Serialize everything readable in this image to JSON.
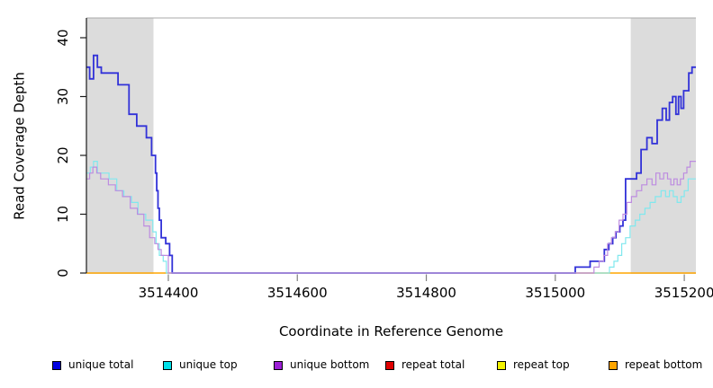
{
  "chart_data": {
    "type": "line",
    "subtype": "step",
    "title": "",
    "xlabel": "Coordinate in Reference Genome",
    "ylabel": "Read Coverage Depth",
    "x_ticks": [
      3514400,
      3514600,
      3514800,
      3515000,
      3515200
    ],
    "y_ticks": [
      0,
      10,
      20,
      30,
      40
    ],
    "xlim": [
      3514273,
      3515218
    ],
    "ylim": [
      0,
      43
    ],
    "grid": false,
    "legend_position": "bottom",
    "band_color": "#dcdcdc",
    "shaded_regions": [
      {
        "x0": 3514273,
        "x1": 3514377
      },
      {
        "x0": 3515117,
        "x1": 3515218
      }
    ],
    "series": [
      {
        "name": "repeat total",
        "line_color": "#dd0000",
        "width": 1,
        "points": [
          [
            3514273,
            0
          ]
        ]
      },
      {
        "name": "repeat top",
        "line_color": "#f5f500",
        "width": 1,
        "points": [
          [
            3514273,
            0
          ]
        ]
      },
      {
        "name": "repeat bottom",
        "line_color": "#ffa500",
        "width": 1.4,
        "points": [
          [
            3514273,
            0
          ]
        ]
      },
      {
        "name": "unique total",
        "line_color": "#3232d8",
        "width": 1.8,
        "points": [
          [
            3514273,
            35
          ],
          [
            3514278,
            33
          ],
          [
            3514284,
            37
          ],
          [
            3514290,
            35
          ],
          [
            3514296,
            34
          ],
          [
            3514322,
            32
          ],
          [
            3514339,
            27
          ],
          [
            3514351,
            25
          ],
          [
            3514366,
            23
          ],
          [
            3514374,
            20
          ],
          [
            3514380,
            17
          ],
          [
            3514382,
            14
          ],
          [
            3514384,
            11
          ],
          [
            3514386,
            9
          ],
          [
            3514389,
            6
          ],
          [
            3514396,
            5
          ],
          [
            3514402,
            3
          ],
          [
            3514406,
            0
          ],
          [
            3515031,
            1
          ],
          [
            3515054,
            2
          ],
          [
            3515076,
            4
          ],
          [
            3515083,
            5
          ],
          [
            3515089,
            6
          ],
          [
            3515094,
            7
          ],
          [
            3515100,
            8
          ],
          [
            3515105,
            9
          ],
          [
            3515109,
            16
          ],
          [
            3515126,
            17
          ],
          [
            3515133,
            21
          ],
          [
            3515142,
            23
          ],
          [
            3515150,
            22
          ],
          [
            3515158,
            26
          ],
          [
            3515166,
            28
          ],
          [
            3515172,
            26
          ],
          [
            3515177,
            29
          ],
          [
            3515182,
            30
          ],
          [
            3515187,
            27
          ],
          [
            3515191,
            30
          ],
          [
            3515195,
            28
          ],
          [
            3515199,
            31
          ],
          [
            3515207,
            34
          ],
          [
            3515212,
            35
          ]
        ]
      },
      {
        "name": "unique top",
        "line_color": "#80e8ee",
        "width": 1.2,
        "points": [
          [
            3514273,
            17
          ],
          [
            3514279,
            18
          ],
          [
            3514284,
            19
          ],
          [
            3514290,
            17
          ],
          [
            3514308,
            16
          ],
          [
            3514320,
            14
          ],
          [
            3514331,
            13
          ],
          [
            3514343,
            12
          ],
          [
            3514353,
            10
          ],
          [
            3514365,
            9
          ],
          [
            3514376,
            7
          ],
          [
            3514381,
            5
          ],
          [
            3514386,
            3
          ],
          [
            3514392,
            2
          ],
          [
            3514397,
            0
          ],
          [
            3515084,
            1
          ],
          [
            3515091,
            2
          ],
          [
            3515097,
            3
          ],
          [
            3515103,
            5
          ],
          [
            3515109,
            6
          ],
          [
            3515116,
            8
          ],
          [
            3515124,
            9
          ],
          [
            3515131,
            10
          ],
          [
            3515139,
            11
          ],
          [
            3515147,
            12
          ],
          [
            3515155,
            13
          ],
          [
            3515164,
            14
          ],
          [
            3515171,
            13
          ],
          [
            3515177,
            14
          ],
          [
            3515183,
            13
          ],
          [
            3515189,
            12
          ],
          [
            3515195,
            13
          ],
          [
            3515200,
            14
          ],
          [
            3515206,
            16
          ]
        ]
      },
      {
        "name": "unique bottom",
        "line_color": "#bd8ce0",
        "width": 1.2,
        "points": [
          [
            3514273,
            16
          ],
          [
            3514278,
            17
          ],
          [
            3514283,
            18
          ],
          [
            3514289,
            17
          ],
          [
            3514295,
            16
          ],
          [
            3514307,
            15
          ],
          [
            3514318,
            14
          ],
          [
            3514329,
            13
          ],
          [
            3514341,
            11
          ],
          [
            3514352,
            10
          ],
          [
            3514362,
            8
          ],
          [
            3514371,
            6
          ],
          [
            3514379,
            5
          ],
          [
            3514384,
            4
          ],
          [
            3514389,
            3
          ],
          [
            3514400,
            0
          ],
          [
            3515060,
            1
          ],
          [
            3515068,
            2
          ],
          [
            3515075,
            3
          ],
          [
            3515081,
            5
          ],
          [
            3515087,
            6
          ],
          [
            3515093,
            7
          ],
          [
            3515099,
            9
          ],
          [
            3515105,
            10
          ],
          [
            3515111,
            12
          ],
          [
            3515118,
            13
          ],
          [
            3515126,
            14
          ],
          [
            3515134,
            15
          ],
          [
            3515142,
            16
          ],
          [
            3515150,
            15
          ],
          [
            3515156,
            17
          ],
          [
            3515162,
            16
          ],
          [
            3515168,
            17
          ],
          [
            3515174,
            16
          ],
          [
            3515179,
            15
          ],
          [
            3515184,
            16
          ],
          [
            3515189,
            15
          ],
          [
            3515194,
            16
          ],
          [
            3515199,
            17
          ],
          [
            3515204,
            18
          ],
          [
            3515209,
            19
          ]
        ]
      }
    ],
    "legend": [
      {
        "label": "unique total",
        "color": "#0000e0"
      },
      {
        "label": "unique top",
        "color": "#00e0e8"
      },
      {
        "label": "unique bottom",
        "color": "#9c1fd6"
      },
      {
        "label": "repeat total",
        "color": "#e00000"
      },
      {
        "label": "repeat top",
        "color": "#f2f200"
      },
      {
        "label": "repeat bottom",
        "color": "#ffa500"
      }
    ]
  }
}
